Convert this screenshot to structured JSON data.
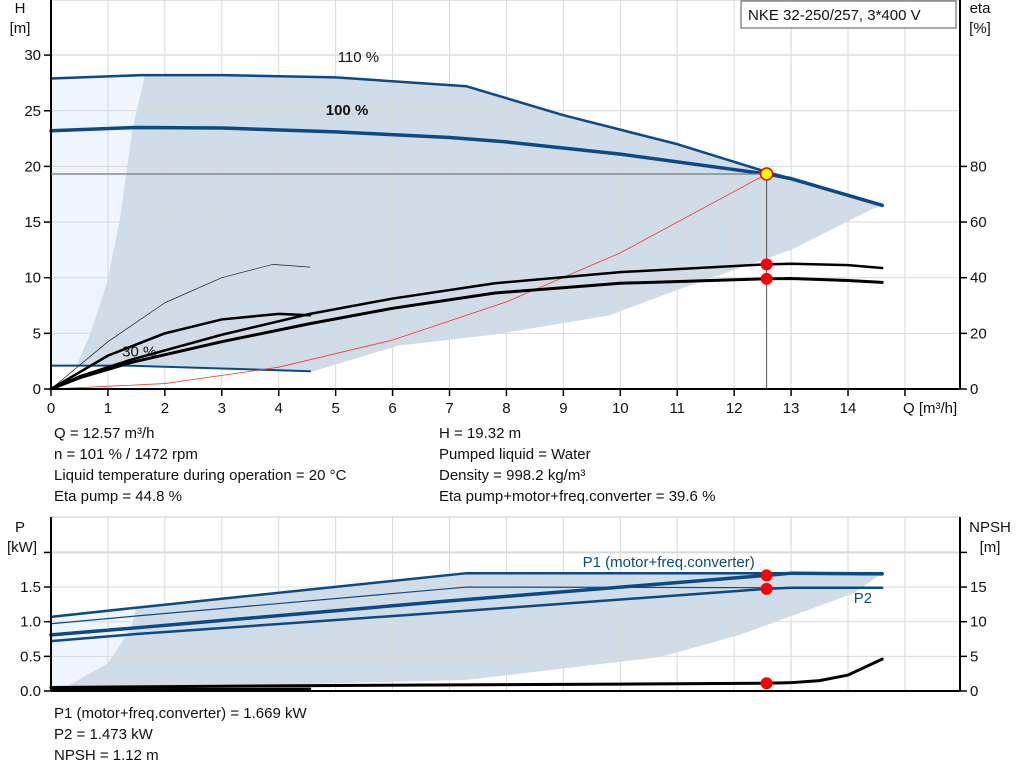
{
  "colors": {
    "curve_blue": "#0b4a87",
    "range_fill": "#d0dce8",
    "light_fill": "#eef5fd",
    "marker_red": "#ff0000",
    "op_point_yellow": "#ffff00",
    "grid": "#d9d9d9"
  },
  "legend_box": "NKE 32-250/257, 3*400 V",
  "chart_data": [
    {
      "type": "line",
      "xlabel": "Q [m³/h]",
      "ylabel_line1": "H",
      "ylabel_line2": "[m]",
      "y2label_line1": "eta",
      "y2label_line2": "[%]",
      "xlim": [
        0,
        15.9
      ],
      "ylim": [
        0,
        35
      ],
      "y2lim": [
        0,
        140
      ],
      "xticks": [
        0,
        1,
        2,
        3,
        4,
        5,
        6,
        7,
        8,
        9,
        10,
        11,
        12,
        13,
        14
      ],
      "yticks": [
        0,
        5,
        10,
        15,
        20,
        25,
        30
      ],
      "y2ticks": [
        0,
        20,
        40,
        60,
        80
      ],
      "grid": true,
      "curve_labels": [
        {
          "text": "110 %",
          "x": 5.4,
          "y": 29.4,
          "bold": false
        },
        {
          "text": "100 %",
          "x": 5.2,
          "y": 24.6,
          "bold": true
        },
        {
          "text": "30 %",
          "x": 1.55,
          "y": 2.9,
          "bold": false
        }
      ],
      "operating_point": {
        "Q": 12.57,
        "H": 19.32,
        "eta_pump": 44.8,
        "eta_total": 39.6
      },
      "light_range": [
        [
          0,
          2.1
        ],
        [
          0.45,
          2.1
        ],
        [
          0.69,
          5
        ],
        [
          0.98,
          9.5
        ],
        [
          1.21,
          15.2
        ],
        [
          1.42,
          23
        ],
        [
          1.65,
          28.2
        ],
        [
          0,
          27.9
        ]
      ],
      "operating_range": [
        [
          1.65,
          28.2
        ],
        [
          3,
          28.2
        ],
        [
          5,
          28.0
        ],
        [
          7.3,
          27.2
        ],
        [
          9,
          24.6
        ],
        [
          11,
          22.0
        ],
        [
          12.57,
          19.5
        ],
        [
          13,
          18.9
        ],
        [
          14,
          17.4
        ],
        [
          14.6,
          16.5
        ],
        [
          14.4,
          16.1
        ],
        [
          13,
          12.5
        ],
        [
          11,
          8.9
        ],
        [
          9.8,
          6.6
        ],
        [
          7.8,
          4.9
        ],
        [
          6.1,
          3.9
        ],
        [
          4.55,
          1.5
        ],
        [
          1.3,
          2.1
        ],
        [
          0.45,
          2.1
        ],
        [
          0.69,
          5
        ],
        [
          0.98,
          9.5
        ],
        [
          1.21,
          15.2
        ],
        [
          1.42,
          23
        ]
      ],
      "series": [
        {
          "id": "h-110",
          "axis": "H",
          "color": "#0b4a87",
          "width": 2.5,
          "points": [
            [
              0,
              27.9
            ],
            [
              1.6,
              28.2
            ],
            [
              3,
              28.2
            ],
            [
              5,
              28.0
            ],
            [
              7.3,
              27.2
            ],
            [
              9,
              24.6
            ],
            [
              11,
              22.0
            ],
            [
              12.57,
              19.5
            ],
            [
              13,
              18.9
            ],
            [
              14,
              17.4
            ],
            [
              14.6,
              16.5
            ]
          ]
        },
        {
          "id": "h-100",
          "axis": "H",
          "color": "#0b4a87",
          "width": 3.5,
          "points": [
            [
              0,
              23.2
            ],
            [
              1.5,
              23.5
            ],
            [
              3,
              23.45
            ],
            [
              5,
              23.1
            ],
            [
              7,
              22.6
            ],
            [
              8,
              22.2
            ],
            [
              10,
              21.1
            ],
            [
              12.57,
              19.32
            ],
            [
              13,
              18.9
            ],
            [
              14,
              17.4
            ],
            [
              14.6,
              16.5
            ]
          ]
        },
        {
          "id": "h-min",
          "axis": "H",
          "color": "#0b4a87",
          "width": 2,
          "points": [
            [
              0,
              2.1
            ],
            [
              1.3,
              2.1
            ],
            [
              4.55,
              1.6
            ]
          ]
        },
        {
          "id": "system-curve",
          "axis": "H",
          "color": "#ff3030",
          "width": 0.8,
          "points": [
            [
              0,
              0
            ],
            [
              2,
              0.49
            ],
            [
              4,
              1.96
            ],
            [
              6,
              4.4
            ],
            [
              8,
              7.83
            ],
            [
              10,
              12.23
            ],
            [
              12.57,
              19.32
            ]
          ]
        },
        {
          "id": "eta-low-speed-thin",
          "axis": "eta",
          "color": "#222",
          "width": 0.7,
          "points": [
            [
              0,
              0
            ],
            [
              1,
              17
            ],
            [
              2,
              31
            ],
            [
              3,
              40
            ],
            [
              3.9,
              44.8
            ],
            [
              4.55,
              43.8
            ]
          ]
        },
        {
          "id": "eta-low-speed",
          "axis": "eta",
          "color": "#000",
          "width": 2.5,
          "points": [
            [
              0,
              0
            ],
            [
              1,
              12
            ],
            [
              2,
              20
            ],
            [
              3,
              25
            ],
            [
              4,
              27
            ],
            [
              4.55,
              26.5
            ]
          ]
        },
        {
          "id": "eta-pump",
          "axis": "eta",
          "color": "#000",
          "width": 2.5,
          "points": [
            [
              0,
              0
            ],
            [
              0.5,
              4.5
            ],
            [
              1.4,
              10.5
            ],
            [
              3,
              19.5
            ],
            [
              4.55,
              27
            ],
            [
              6,
              32.5
            ],
            [
              7.8,
              38
            ],
            [
              10,
              42
            ],
            [
              12.57,
              44.8
            ],
            [
              13,
              45
            ],
            [
              14,
              44.5
            ],
            [
              14.6,
              43.5
            ]
          ]
        },
        {
          "id": "eta-total",
          "axis": "eta",
          "color": "#000",
          "width": 3,
          "points": [
            [
              0,
              0
            ],
            [
              0.5,
              4
            ],
            [
              1.4,
              9.5
            ],
            [
              3,
              17
            ],
            [
              4.55,
              23.5
            ],
            [
              6,
              29
            ],
            [
              7.8,
              34.5
            ],
            [
              10,
              38
            ],
            [
              12.57,
              39.6
            ],
            [
              13,
              39.7
            ],
            [
              14,
              39
            ],
            [
              14.6,
              38.3
            ]
          ]
        }
      ]
    },
    {
      "type": "line",
      "ylabel_line1": "P",
      "ylabel_line2": "[kW]",
      "y2label_line1": "NPSH",
      "y2label_line2": "[m]",
      "xlim": [
        0,
        15.9
      ],
      "ylim": [
        0,
        2.5
      ],
      "y2lim": [
        0,
        25
      ],
      "yticks": [
        "0.0",
        "0.5",
        "1.0",
        "1.5"
      ],
      "y2ticks": [
        0,
        5,
        10,
        15
      ],
      "grid": true,
      "curve_labels": [
        {
          "text": "P1 (motor+freq.converter)",
          "x": 10.85,
          "y": 1.79
        },
        {
          "text": "P2",
          "x": 14.1,
          "y": 1.27
        }
      ],
      "operating_point": {
        "Q": 12.57,
        "P1": 1.669,
        "P2": 1.473,
        "NPSH": 1.12
      },
      "light_range": [
        [
          0,
          0.03
        ],
        [
          0.2,
          0.03
        ],
        [
          1.0,
          0.4
        ],
        [
          1.4,
          0.9
        ],
        [
          1.5,
          1.2
        ],
        [
          0,
          1.07
        ]
      ],
      "operating_range": [
        [
          1.5,
          1.2
        ],
        [
          7.3,
          1.7
        ],
        [
          14.6,
          1.7
        ],
        [
          14.1,
          1.41
        ],
        [
          12.1,
          0.81
        ],
        [
          10.7,
          0.49
        ],
        [
          7.3,
          0.16
        ],
        [
          1.5,
          0.04
        ],
        [
          0.2,
          0.03
        ],
        [
          1.0,
          0.4
        ],
        [
          1.4,
          0.9
        ]
      ],
      "series": [
        {
          "id": "p1-110",
          "axis": "P",
          "color": "#0b4a87",
          "width": 2.5,
          "points": [
            [
              0,
              1.07
            ],
            [
              1.47,
              1.2
            ],
            [
              7.3,
              1.7
            ],
            [
              14.6,
              1.7
            ]
          ]
        },
        {
          "id": "p2-110",
          "axis": "P",
          "color": "#0b4a87",
          "width": 1.2,
          "points": [
            [
              0,
              0.97
            ],
            [
              1.47,
              1.08
            ],
            [
              7.3,
              1.5
            ],
            [
              13,
              1.49
            ],
            [
              14.6,
              1.49
            ]
          ]
        },
        {
          "id": "p1-100",
          "axis": "P",
          "color": "#0b4a87",
          "width": 3.5,
          "points": [
            [
              0,
              0.81
            ],
            [
              1.47,
              0.91
            ],
            [
              7,
              1.3
            ],
            [
              12.57,
              1.669
            ],
            [
              13,
              1.7
            ],
            [
              14.6,
              1.69
            ]
          ]
        },
        {
          "id": "p2-100",
          "axis": "P",
          "color": "#0b4a87",
          "width": 2.5,
          "points": [
            [
              0,
              0.72
            ],
            [
              1.47,
              0.82
            ],
            [
              7,
              1.14
            ],
            [
              12.57,
              1.473
            ],
            [
              13,
              1.49
            ],
            [
              14.6,
              1.49
            ]
          ]
        },
        {
          "id": "npsh-low-speed",
          "axis": "NPSH",
          "color": "#000",
          "width": 2.5,
          "points": [
            [
              0,
              0.2
            ],
            [
              4.55,
              0.3
            ]
          ]
        },
        {
          "id": "npsh",
          "axis": "NPSH",
          "color": "#000",
          "width": 3,
          "points": [
            [
              0,
              0.5
            ],
            [
              1.4,
              0.6
            ],
            [
              5,
              0.8
            ],
            [
              10,
              1.0
            ],
            [
              12.57,
              1.12
            ],
            [
              13,
              1.2
            ],
            [
              13.5,
              1.5
            ],
            [
              14,
              2.3
            ],
            [
              14.6,
              4.6
            ]
          ]
        }
      ]
    }
  ],
  "info_top_left": [
    "Q = 12.57 m³/h",
    "n = 101 % / 1472 rpm",
    "Liquid temperature during operation = 20 °C",
    "Eta pump = 44.8 %"
  ],
  "info_top_right": [
    "H = 19.32 m",
    "Pumped liquid = Water",
    "Density = 998.2 kg/m³",
    "Eta pump+motor+freq.converter = 39.6 %"
  ],
  "info_bottom": [
    "P1 (motor+freq.converter) = 1.669 kW",
    "P2 = 1.473 kW",
    "NPSH = 1.12 m"
  ]
}
